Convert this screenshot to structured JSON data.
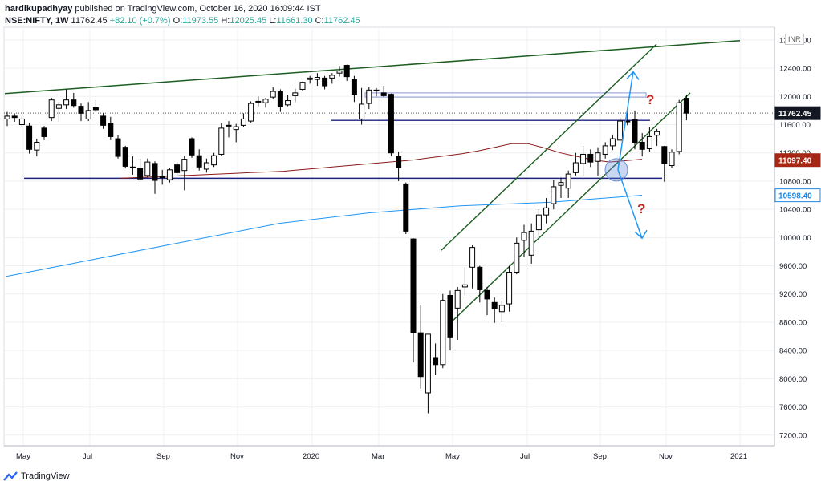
{
  "header": {
    "publisher": "hardikupadhyay",
    "published_text": "published on TradingView.com, October 16, 2020 16:09:44 IST",
    "symbol": "NSE:NIFTY, 1W",
    "last": "11762.45",
    "change": "+82.10 (+0.7%)",
    "open_label": "O:",
    "open": "11973.55",
    "high_label": "H:",
    "high": "12025.45",
    "low_label": "L:",
    "low": "11661.30",
    "close_label": "C:",
    "close": "11762.45"
  },
  "footer": {
    "brand": "TradingView"
  },
  "currency": "INR",
  "colors": {
    "up": "#ffffff",
    "down": "#000000",
    "trendline": "#1b5e20",
    "channel": "#1b5e20",
    "support": "#1a237e",
    "resistance_band": "#9fa8da",
    "ma_short": "#8b1a1a",
    "ma_long": "#2196f3",
    "arrow": "#2196f3",
    "question": "#c62828"
  },
  "chart_data": {
    "type": "candlestick",
    "title": "",
    "x_labels": [
      "May",
      "Jul",
      "Sep",
      "Nov",
      "2020",
      "Mar",
      "May",
      "Jul",
      "Sep",
      "Nov",
      "2021"
    ],
    "y_ticks": [
      7200,
      7600,
      8000,
      8400,
      8800,
      9200,
      9600,
      10000,
      10400,
      10800,
      11200,
      11600,
      12000,
      12400,
      12800
    ],
    "ylim": [
      7050,
      12980
    ],
    "price_labels": [
      {
        "text": "11762.45",
        "value": 11762.45,
        "style": "dark"
      },
      {
        "text": "11097.40",
        "value": 11097.4,
        "style": "red"
      },
      {
        "text": "10598.40",
        "value": 10598.4,
        "style": "blue"
      }
    ],
    "candles": [
      [
        11680,
        11780,
        11580,
        11720
      ],
      [
        11720,
        11760,
        11640,
        11700
      ],
      [
        11600,
        11720,
        11560,
        11680
      ],
      [
        11580,
        11620,
        11190,
        11250
      ],
      [
        11240,
        11400,
        11150,
        11350
      ],
      [
        11550,
        11580,
        11380,
        11430
      ],
      [
        11700,
        11980,
        11650,
        11950
      ],
      [
        11830,
        11920,
        11640,
        11880
      ],
      [
        11880,
        12100,
        11820,
        11950
      ],
      [
        11950,
        12050,
        11840,
        11870
      ],
      [
        11860,
        11900,
        11650,
        11760
      ],
      [
        11680,
        11920,
        11650,
        11800
      ],
      [
        11840,
        11950,
        11780,
        11810
      ],
      [
        11720,
        11760,
        11540,
        11590
      ],
      [
        11620,
        11710,
        11380,
        11430
      ],
      [
        11400,
        11450,
        11120,
        11150
      ],
      [
        11280,
        11300,
        10980,
        11010
      ],
      [
        11000,
        11150,
        10890,
        10990
      ],
      [
        10980,
        11120,
        10810,
        10830
      ],
      [
        10880,
        11120,
        10850,
        11070
      ],
      [
        11050,
        11080,
        10620,
        10810
      ],
      [
        10870,
        10960,
        10750,
        10850
      ],
      [
        10820,
        10980,
        10780,
        10960
      ],
      [
        11030,
        11070,
        10890,
        10920
      ],
      [
        10950,
        11160,
        10670,
        11110
      ],
      [
        11400,
        11420,
        11130,
        11170
      ],
      [
        11160,
        11250,
        10950,
        11000
      ],
      [
        10970,
        11120,
        10920,
        11060
      ],
      [
        11030,
        11200,
        11000,
        11160
      ],
      [
        11180,
        11620,
        11160,
        11550
      ],
      [
        11590,
        11650,
        11420,
        11590
      ],
      [
        11530,
        11610,
        11350,
        11570
      ],
      [
        11590,
        11760,
        11560,
        11680
      ],
      [
        11650,
        11930,
        11630,
        11900
      ],
      [
        11920,
        12000,
        11860,
        11930
      ],
      [
        11910,
        11980,
        11840,
        11960
      ],
      [
        11990,
        12130,
        11960,
        12070
      ],
      [
        12070,
        12100,
        11780,
        11850
      ],
      [
        11880,
        12020,
        11860,
        11940
      ],
      [
        12010,
        12110,
        11920,
        12050
      ],
      [
        12100,
        12210,
        12080,
        12200
      ],
      [
        12240,
        12290,
        12180,
        12260
      ],
      [
        12240,
        12330,
        12150,
        12270
      ],
      [
        12260,
        12290,
        12100,
        12150
      ],
      [
        12260,
        12330,
        12180,
        12300
      ],
      [
        12330,
        12430,
        12280,
        12360
      ],
      [
        12440,
        12450,
        12220,
        12280
      ],
      [
        12240,
        12290,
        11920,
        12030
      ],
      [
        11680,
        12120,
        11600,
        11890
      ],
      [
        11900,
        12130,
        11820,
        12090
      ],
      [
        12090,
        12120,
        12000,
        12080
      ],
      [
        12050,
        12150,
        11990,
        12010
      ],
      [
        12030,
        12040,
        11150,
        11200
      ],
      [
        11150,
        11220,
        10800,
        10990
      ],
      [
        10760,
        10780,
        10050,
        10090
      ],
      [
        9980,
        9990,
        8230,
        8650
      ],
      [
        8650,
        9050,
        7860,
        8030
      ],
      [
        7800,
        8600,
        7510,
        8630
      ],
      [
        8300,
        8500,
        8050,
        8200
      ],
      [
        8200,
        9200,
        8150,
        9110
      ],
      [
        9180,
        9250,
        8400,
        8580
      ],
      [
        9000,
        9300,
        8550,
        9250
      ],
      [
        9300,
        9580,
        9180,
        9330
      ],
      [
        9580,
        9890,
        9280,
        9860
      ],
      [
        9580,
        9600,
        9080,
        9260
      ],
      [
        9250,
        9300,
        8900,
        9130
      ],
      [
        9080,
        9150,
        8790,
        8990
      ],
      [
        8950,
        9100,
        8800,
        9040
      ],
      [
        9060,
        9600,
        8950,
        9510
      ],
      [
        9510,
        10000,
        9480,
        9920
      ],
      [
        9960,
        10180,
        9720,
        10070
      ],
      [
        9750,
        10200,
        9630,
        10090
      ],
      [
        10110,
        10400,
        10010,
        10320
      ],
      [
        10320,
        10560,
        10200,
        10420
      ],
      [
        10480,
        10820,
        10400,
        10720
      ],
      [
        10740,
        10850,
        10560,
        10780
      ],
      [
        10700,
        10950,
        10560,
        10900
      ],
      [
        10920,
        11200,
        10880,
        11060
      ],
      [
        11050,
        11300,
        10880,
        11180
      ],
      [
        11180,
        11250,
        11000,
        11070
      ],
      [
        11080,
        11280,
        10880,
        11200
      ],
      [
        11180,
        11350,
        11120,
        11300
      ],
      [
        11300,
        11460,
        11240,
        11400
      ],
      [
        11380,
        11700,
        11350,
        11650
      ],
      [
        11650,
        11800,
        11590,
        11650
      ],
      [
        11670,
        11800,
        11250,
        11340
      ],
      [
        11350,
        11480,
        11150,
        11250
      ],
      [
        11260,
        11560,
        11210,
        11430
      ],
      [
        11450,
        11540,
        11300,
        11500
      ],
      [
        11290,
        11300,
        10790,
        11050
      ],
      [
        11020,
        11250,
        10980,
        11210
      ],
      [
        11220,
        11950,
        11180,
        11910
      ],
      [
        11973.55,
        12025.45,
        11661.3,
        11762.45
      ]
    ],
    "overlays": {
      "ma_short_series": [
        10840,
        10850,
        10860,
        10870,
        10880,
        10890,
        10900,
        10910,
        10920,
        10930,
        10940,
        10960,
        10980,
        11000,
        11020,
        11040,
        11060,
        11080,
        11100,
        11130,
        11160,
        11190,
        11230,
        11280,
        11330,
        11330,
        11270,
        11200,
        11150,
        11100,
        11070,
        11090,
        11110
      ],
      "ma_long_series": [
        9450,
        9700,
        9950,
        10200,
        10350,
        10450,
        10500,
        10600
      ]
    }
  }
}
